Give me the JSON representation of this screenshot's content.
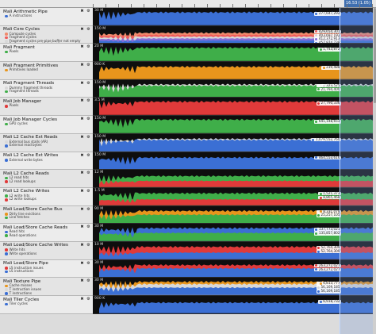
{
  "timeline": {
    "time_label": "16.53 (1.05)"
  },
  "counters": [
    {
      "title": "Mali Arithmetic Pipe",
      "ymax": "30 M",
      "series": [
        {
          "name": "A instructions",
          "color": "#3b6fd4",
          "value": "277,647,292",
          "level": 0.88
        }
      ]
    },
    {
      "title": "Mali Core Cycles",
      "ymax": "150 M",
      "series": [
        {
          "name": "Compute cycles",
          "color": "#f08a6c",
          "value": "",
          "level": 0.72
        },
        {
          "name": "Fragment cycles",
          "color": "#f05a5a",
          "value": "429,654,301",
          "level": 0.58
        },
        {
          "name": "Fragment cycles pre-pipe buffer not empty",
          "color": "#d8d8d8",
          "value": "403,697,193",
          "level": 0.46
        },
        {
          "name": "Fragment cycles waiting for tile",
          "color": "#8a6fd8",
          "value": "412,372,913",
          "level": 0.34
        },
        {
          "name": "Tripipe cycles",
          "color": "#3b6fd4",
          "value": "457,974,738",
          "level": 0.2
        }
      ]
    },
    {
      "title": "Mali Fragment",
      "ymax": "20 M",
      "series": [
        {
          "name": "Pixels",
          "color": "#3fae49",
          "value": "1,743,872",
          "level": 0.9
        }
      ]
    },
    {
      "title": "Mali Fragment Primitives",
      "ymax": "900 K",
      "series": [
        {
          "name": "Primitives loaded",
          "color": "#e8951c",
          "value": "239,488",
          "level": 0.85
        }
      ]
    },
    {
      "title": "Mali Fragment Threads",
      "ymax": "150 M",
      "series": [
        {
          "name": "Dummy fragment threads",
          "color": "#d8d8d8",
          "value": "323,525",
          "level": 0.88
        },
        {
          "name": "Fragment threads",
          "color": "#3fae49",
          "value": "21,794,400",
          "level": 0.8
        }
      ]
    },
    {
      "title": "Mali Job Manager",
      "ymax": "3.5 M",
      "series": [
        {
          "name": "Pixels",
          "color": "#e03a3a",
          "value": "27,790,336",
          "level": 0.9
        }
      ]
    },
    {
      "title": "Mali Job Manager Cycles",
      "ymax": "150 M",
      "series": [
        {
          "name": "GPU cycles",
          "color": "#3fae49",
          "value": "641,148,653",
          "level": 0.92
        }
      ]
    },
    {
      "title": "Mali L2 Cache Ext Reads",
      "ymax": "150 M",
      "series": [
        {
          "name": "External bus stalls (AR)",
          "color": "#d8d8d8",
          "value": "",
          "level": 0.85
        },
        {
          "name": "External read bytes",
          "color": "#3b6fd4",
          "value": "1,079,552,760",
          "level": 0.78
        }
      ]
    },
    {
      "title": "Mali L2 Cache Ext Writes",
      "ymax": "150 M",
      "series": [
        {
          "name": "External write bytes",
          "color": "#3b6fd4",
          "value": "464,553,616",
          "level": 0.82
        }
      ]
    },
    {
      "title": "Mali L2 Cache Reads",
      "ymax": "12 M",
      "series": [
        {
          "name": "L2 read hits",
          "color": "#3fae49",
          "value": "",
          "level": 0.75
        },
        {
          "name": "L2 read lookups",
          "color": "#e03a3a",
          "value": "",
          "level": 0.42
        }
      ]
    },
    {
      "title": "Mali L2 Cache Writes",
      "ymax": "1.5 M",
      "series": [
        {
          "name": "L2 write hits",
          "color": "#3fae49",
          "value": "1,521,373",
          "level": 0.82
        },
        {
          "name": "L2 write lookups",
          "color": "#e03a3a",
          "value": "8,865,468",
          "level": 0.4
        }
      ]
    },
    {
      "title": "Mali Load/Store Cache Bus",
      "ymax": "90 M",
      "series": [
        {
          "name": "Dirty line evictions",
          "color": "#e8951c",
          "value": "8,331,079",
          "level": 0.86
        },
        {
          "name": "Line fetches",
          "color": "#3fae49",
          "value": "25,257,105",
          "level": 0.6
        }
      ]
    },
    {
      "title": "Mali Load/Store Cache Reads",
      "ymax": "30 M",
      "series": [
        {
          "name": "Read hits",
          "color": "#3b6fd4",
          "value": "137,773,021",
          "level": 0.88
        },
        {
          "name": "Read operations",
          "color": "#3fae49",
          "value": "135,857,802",
          "level": 0.55
        }
      ]
    },
    {
      "title": "Mali Load/Store Cache Writes",
      "ymax": "10 M",
      "series": [
        {
          "name": "Write hits",
          "color": "#e03a3a",
          "value": "52,764,309",
          "level": 0.85
        },
        {
          "name": "Write operations",
          "color": "#3b6fd4",
          "value": "52,764,309",
          "level": 0.45
        }
      ]
    },
    {
      "title": "Mali Load/Store Pipe",
      "ymax": "30 M",
      "series": [
        {
          "name": "LS instruction issues",
          "color": "#e03a3a",
          "value": "263,272,027",
          "level": 0.85
        },
        {
          "name": "LS instructions",
          "color": "#3b6fd4",
          "value": "263,272,027",
          "level": 0.62
        }
      ]
    },
    {
      "title": "Mali Texture Pipe",
      "ymax": "30 M",
      "series": [
        {
          "name": "Cache misses",
          "color": "#e8951c",
          "value": "6,813,777",
          "level": 0.9
        },
        {
          "name": "T instruction issues",
          "color": "#d8d8d8",
          "value": "56,169,185",
          "level": 0.74
        },
        {
          "name": "T instructions",
          "color": "#3b6fd4",
          "value": "56,169,185",
          "level": 0.5
        }
      ]
    },
    {
      "title": "Mali Tiler Cycles",
      "ymax": "900 K",
      "series": [
        {
          "name": "Tiler cycles",
          "color": "#3b6fd4",
          "value": "6,918,732",
          "level": 0.72
        }
      ]
    }
  ]
}
